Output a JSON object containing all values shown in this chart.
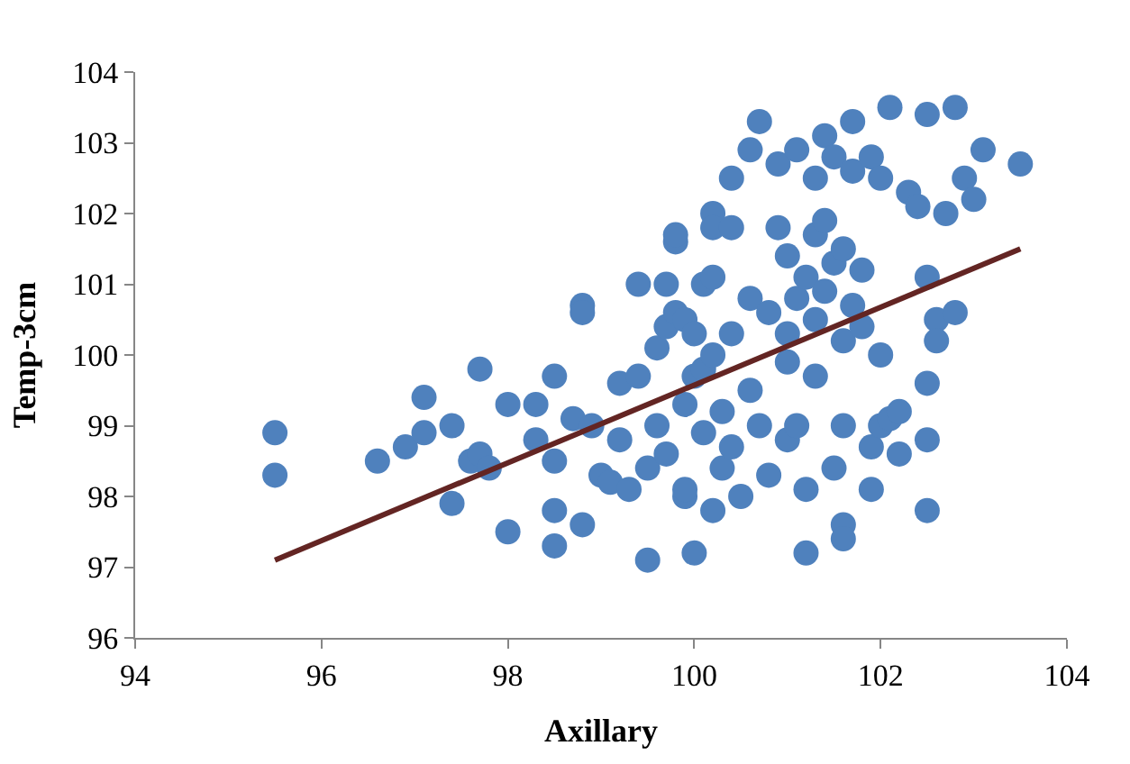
{
  "chart_data": {
    "type": "scatter",
    "xlabel": "Axillary",
    "ylabel": "Temp-3cm",
    "xlim": [
      94,
      104
    ],
    "xticks": [
      94,
      96,
      98,
      100,
      102,
      104
    ],
    "ylim": [
      96,
      104
    ],
    "yticks": [
      96,
      97,
      98,
      99,
      100,
      101,
      102,
      103,
      104
    ],
    "grid": false,
    "marker": "circle",
    "series": [
      {
        "color": "#4f81bd",
        "x": [
          95.5,
          95.5,
          96.6,
          96.9,
          97.1,
          97.1,
          97.4,
          97.4,
          97.6,
          97.7,
          97.7,
          97.8,
          98.0,
          98.0,
          98.3,
          98.3,
          98.5,
          98.5,
          98.5,
          98.5,
          98.7,
          98.8,
          98.8,
          98.8,
          98.9,
          99.0,
          99.1,
          99.2,
          99.2,
          99.3,
          99.4,
          99.4,
          99.5,
          99.5,
          99.6,
          99.6,
          99.7,
          99.7,
          99.7,
          99.8,
          99.8,
          99.8,
          99.9,
          99.9,
          99.9,
          99.9,
          100.0,
          100.0,
          100.0,
          100.1,
          100.1,
          100.1,
          100.2,
          100.2,
          100.2,
          100.2,
          100.2,
          100.3,
          100.3,
          100.4,
          100.4,
          100.4,
          100.4,
          100.5,
          100.6,
          100.6,
          100.6,
          100.7,
          100.7,
          100.8,
          100.8,
          100.9,
          100.9,
          101.0,
          101.0,
          101.0,
          101.0,
          101.1,
          101.1,
          101.1,
          101.2,
          101.2,
          101.2,
          101.3,
          101.3,
          101.3,
          101.3,
          101.4,
          101.4,
          101.4,
          101.5,
          101.5,
          101.5,
          101.6,
          101.6,
          101.6,
          101.6,
          101.6,
          101.7,
          101.7,
          101.7,
          101.8,
          101.8,
          101.9,
          101.9,
          101.9,
          102.0,
          102.0,
          102.0,
          102.1,
          102.1,
          102.2,
          102.2,
          102.3,
          102.4,
          102.5,
          102.5,
          102.5,
          102.5,
          102.5,
          102.6,
          102.6,
          102.7,
          102.8,
          102.8,
          102.9,
          103.0,
          103.1,
          103.5
        ],
        "values": [
          98.9,
          98.3,
          98.5,
          98.7,
          98.9,
          99.4,
          99.0,
          97.9,
          98.5,
          98.6,
          99.8,
          98.4,
          99.3,
          97.5,
          98.8,
          99.3,
          99.7,
          98.5,
          97.8,
          97.3,
          99.1,
          100.7,
          100.6,
          97.6,
          99.0,
          98.3,
          98.2,
          99.6,
          98.8,
          98.1,
          99.7,
          101.0,
          97.1,
          98.4,
          100.1,
          99.0,
          100.4,
          101.0,
          98.6,
          101.6,
          101.7,
          100.6,
          100.5,
          99.3,
          98.0,
          98.1,
          97.2,
          100.3,
          99.7,
          98.9,
          99.8,
          101.0,
          101.1,
          100.0,
          102.0,
          101.8,
          97.8,
          98.4,
          99.2,
          100.3,
          98.7,
          101.8,
          102.5,
          98.0,
          102.9,
          99.5,
          100.8,
          103.3,
          99.0,
          98.3,
          100.6,
          101.8,
          102.7,
          98.8,
          99.9,
          100.3,
          101.4,
          102.9,
          100.8,
          99.0,
          98.1,
          97.2,
          101.1,
          101.7,
          100.5,
          99.7,
          102.5,
          103.1,
          101.9,
          100.9,
          101.3,
          102.8,
          98.4,
          101.5,
          100.2,
          99.0,
          97.6,
          97.4,
          102.6,
          103.3,
          100.7,
          101.2,
          100.4,
          98.1,
          102.8,
          98.7,
          102.5,
          100.0,
          99.0,
          103.5,
          99.1,
          98.6,
          99.2,
          102.3,
          102.1,
          103.4,
          101.1,
          99.6,
          98.8,
          97.8,
          100.5,
          100.2,
          102.0,
          103.5,
          100.6,
          102.5,
          102.2,
          102.9,
          102.7
        ]
      },
      {
        "type": "line",
        "color": "#632523",
        "marker": "none",
        "line_style": "solid",
        "x": [
          95.5,
          103.5
        ],
        "values": [
          97.1,
          101.5
        ]
      }
    ]
  }
}
